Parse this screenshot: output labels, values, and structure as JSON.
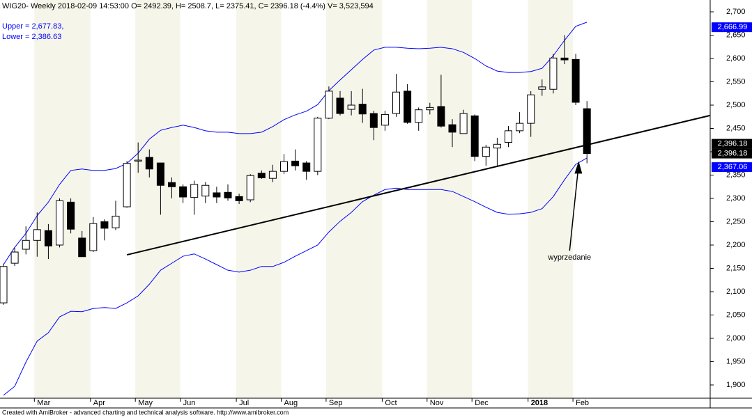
{
  "chart_data": {
    "type": "candlestick",
    "title": "WIG20- Weekly 2018-02-09 14:53:00 O= 2492.39, H= 2508.7, L= 2375.41, C= 2396.18 (-4.4%) V= 3,523,594",
    "footer": "Created with AmiBroker - advanced charting and technical analysis software. http://www.amibroker.com",
    "categories": [
      null,
      null,
      null,
      "Mar",
      null,
      null,
      null,
      null,
      "Apr",
      null,
      null,
      null,
      "May",
      null,
      null,
      null,
      "Jun",
      null,
      null,
      null,
      null,
      "Jul",
      null,
      null,
      null,
      "Aug",
      null,
      null,
      null,
      "Sep",
      null,
      null,
      null,
      null,
      "Oct",
      null,
      null,
      null,
      "Nov",
      null,
      null,
      null,
      "Dec",
      null,
      null,
      null,
      null,
      "2018",
      null,
      null,
      null,
      "Feb",
      null
    ],
    "open": [
      2076,
      2161,
      2191,
      2210,
      2231,
      2200,
      2292,
      2215,
      2188,
      2250,
      2237,
      2282,
      2380,
      2388,
      2376,
      2334,
      2325,
      2302,
      2305,
      2312,
      2313,
      2304,
      2297,
      2354,
      2343,
      2358,
      2380,
      2376,
      2358,
      2472,
      2515,
      2491,
      2502,
      2482,
      2457,
      2482,
      2530,
      2463,
      2490,
      2497,
      2458,
      2439,
      2477,
      2390,
      2408,
      2420,
      2445,
      2461,
      2534,
      2534,
      2601,
      2598,
      2492.39
    ],
    "high": [
      2160,
      2195,
      2240,
      2270,
      2245,
      2300,
      2300,
      2230,
      2260,
      2255,
      2295,
      2380,
      2420,
      2405,
      2375,
      2345,
      2330,
      2338,
      2335,
      2325,
      2330,
      2310,
      2352,
      2360,
      2372,
      2395,
      2405,
      2380,
      2475,
      2540,
      2530,
      2530,
      2535,
      2488,
      2488,
      2567,
      2545,
      2495,
      2505,
      2565,
      2470,
      2490,
      2480,
      2415,
      2430,
      2455,
      2485,
      2530,
      2555,
      2610,
      2650,
      2610,
      2508.7
    ],
    "low": [
      2072,
      2155,
      2180,
      2175,
      2170,
      2195,
      2225,
      2175,
      2185,
      2210,
      2232,
      2280,
      2355,
      2345,
      2265,
      2300,
      2290,
      2265,
      2290,
      2290,
      2295,
      2288,
      2292,
      2342,
      2335,
      2352,
      2360,
      2340,
      2350,
      2470,
      2478,
      2478,
      2462,
      2425,
      2445,
      2475,
      2460,
      2445,
      2480,
      2452,
      2410,
      2440,
      2380,
      2370,
      2370,
      2410,
      2440,
      2432,
      2520,
      2525,
      2588,
      2500,
      2375.41
    ],
    "close": [
      2154,
      2185,
      2210,
      2233,
      2198,
      2295,
      2234,
      2175,
      2246,
      2236,
      2262,
      2375,
      2382,
      2363,
      2328,
      2325,
      2303,
      2330,
      2328,
      2303,
      2301,
      2295,
      2349,
      2344,
      2358,
      2379,
      2370,
      2358,
      2472,
      2530,
      2482,
      2500,
      2481,
      2452,
      2480,
      2528,
      2463,
      2490,
      2495,
      2455,
      2442,
      2482,
      2390,
      2410,
      2416,
      2445,
      2461,
      2522,
      2539,
      2601,
      2597,
      2506,
      2396.18
    ],
    "series": [
      {
        "name": "Upper = 2,677.83,",
        "color": "#0000ff",
        "values": [
          2158,
          2195,
          2225,
          2263,
          2292,
          2330,
          2360,
          2363,
          2360,
          2360,
          2364,
          2375,
          2397,
          2427,
          2446,
          2452,
          2457,
          2452,
          2445,
          2442,
          2442,
          2439,
          2439,
          2442,
          2454,
          2469,
          2479,
          2487,
          2501,
          2531,
          2554,
          2576,
          2598,
          2618,
          2624,
          2624,
          2622,
          2621,
          2622,
          2624,
          2621,
          2613,
          2600,
          2584,
          2573,
          2570,
          2570,
          2572,
          2579,
          2606,
          2639,
          2669,
          2677.83
        ]
      },
      {
        "name": "Lower = 2,386.63",
        "color": "#0000ff",
        "values": [
          1878,
          1897,
          1949,
          1994,
          2012,
          2046,
          2058,
          2057,
          2064,
          2066,
          2064,
          2076,
          2091,
          2116,
          2146,
          2161,
          2176,
          2181,
          2170,
          2158,
          2146,
          2142,
          2146,
          2154,
          2154,
          2163,
          2176,
          2188,
          2200,
          2228,
          2251,
          2270,
          2293,
          2307,
          2319,
          2322,
          2319,
          2319,
          2319,
          2319,
          2315,
          2304,
          2293,
          2281,
          2270,
          2266,
          2267,
          2270,
          2278,
          2304,
          2340,
          2373,
          2386.63
        ]
      }
    ],
    "trendline": {
      "x": [
        11,
        63
      ],
      "values": [
        2179,
        2478
      ],
      "color": "#000000"
    },
    "annotation": {
      "text": "wyprzedanie",
      "x": 51.2,
      "value": 2380
    },
    "price_badges": [
      {
        "value": 2666.99,
        "label": "2,666.99",
        "color": "#0000ff"
      },
      {
        "value": 2396.18,
        "label": "2,396.18",
        "color": "#000000"
      },
      {
        "value": 2396.18,
        "label": "2,396.18",
        "color": "#000000"
      },
      {
        "value": 2367.06,
        "label": "2,367.06",
        "color": "#0000ff"
      }
    ],
    "ylim": [
      1871.6,
      2725.4
    ],
    "yticks": [
      {
        "value": 1900,
        "label": "1,900"
      },
      {
        "value": 1950,
        "label": "1,950"
      },
      {
        "value": 2000,
        "label": "2,000"
      },
      {
        "value": 2050,
        "label": "2,050"
      },
      {
        "value": 2100,
        "label": "2,100"
      },
      {
        "value": 2150,
        "label": "2,150"
      },
      {
        "value": 2200,
        "label": "2,200"
      },
      {
        "value": 2250,
        "label": "2,250"
      },
      {
        "value": 2300,
        "label": "2,300"
      },
      {
        "value": 2350,
        "label": "2,350"
      },
      {
        "value": 2400,
        "label": "2,400"
      },
      {
        "value": 2450,
        "label": "2,450"
      },
      {
        "value": 2500,
        "label": "2,500"
      },
      {
        "value": 2550,
        "label": "2,550"
      },
      {
        "value": 2600,
        "label": "2,600"
      },
      {
        "value": 2650,
        "label": "2,650"
      },
      {
        "value": 2700,
        "label": "2,700"
      }
    ]
  }
}
